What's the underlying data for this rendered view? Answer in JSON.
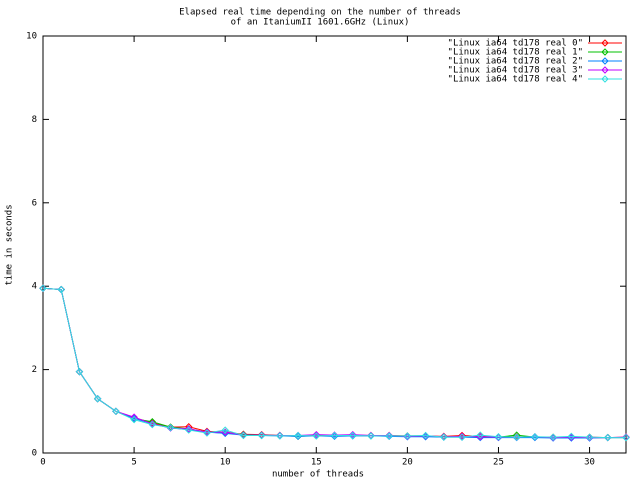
{
  "chart_data": {
    "type": "line",
    "title": "Elapsed real time depending on the number of threads",
    "subtitle": "of an ItaniumII 1601.6GHz (Linux)",
    "x_label": "number of threads",
    "y_label": "time in seconds",
    "x": [
      0,
      1,
      2,
      3,
      4,
      5,
      6,
      7,
      8,
      9,
      10,
      11,
      12,
      13,
      14,
      15,
      16,
      17,
      18,
      19,
      20,
      21,
      22,
      23,
      24,
      25,
      26,
      27,
      28,
      29,
      30,
      31,
      32
    ],
    "xlim": [
      0,
      32
    ],
    "xticks": [
      0,
      5,
      10,
      15,
      20,
      25,
      30
    ],
    "ylim": [
      0,
      10
    ],
    "yticks": [
      0,
      2,
      4,
      6,
      8,
      10
    ],
    "grid": false,
    "legend": "top-right",
    "series": [
      {
        "name": "\"Linux ia64 td178 real 0\"",
        "color": "#ff0000",
        "values": [
          3.95,
          3.92,
          1.95,
          1.3,
          1.0,
          0.85,
          0.72,
          0.62,
          0.63,
          0.52,
          0.5,
          0.45,
          0.44,
          0.42,
          0.41,
          0.43,
          0.42,
          0.43,
          0.42,
          0.42,
          0.41,
          0.41,
          0.4,
          0.42,
          0.4,
          0.38,
          0.39,
          0.38,
          0.38,
          0.37,
          0.38,
          0.37,
          0.38
        ]
      },
      {
        "name": "\"Linux ia64 td178 real 1\"",
        "color": "#00c000",
        "values": [
          3.95,
          3.92,
          1.95,
          1.3,
          1.0,
          0.82,
          0.75,
          0.62,
          0.58,
          0.5,
          0.48,
          0.44,
          0.43,
          0.42,
          0.4,
          0.42,
          0.41,
          0.42,
          0.41,
          0.41,
          0.4,
          0.4,
          0.39,
          0.39,
          0.38,
          0.38,
          0.43,
          0.38,
          0.37,
          0.38,
          0.37,
          0.37,
          0.37
        ]
      },
      {
        "name": "\"Linux ia64 td178 real 2\"",
        "color": "#0080ff",
        "values": [
          3.95,
          3.92,
          1.95,
          1.3,
          1.0,
          0.83,
          0.7,
          0.6,
          0.56,
          0.5,
          0.47,
          0.43,
          0.42,
          0.41,
          0.4,
          0.41,
          0.4,
          0.41,
          0.41,
          0.4,
          0.39,
          0.39,
          0.38,
          0.38,
          0.37,
          0.37,
          0.37,
          0.37,
          0.36,
          0.36,
          0.36,
          0.37,
          0.37
        ]
      },
      {
        "name": "\"Linux ia64 td178 real 3\"",
        "color": "#c000ff",
        "values": [
          3.95,
          3.92,
          1.95,
          1.3,
          1.0,
          0.86,
          0.7,
          0.6,
          0.58,
          0.5,
          0.5,
          0.43,
          0.43,
          0.42,
          0.42,
          0.44,
          0.43,
          0.44,
          0.42,
          0.42,
          0.4,
          0.41,
          0.39,
          0.4,
          0.39,
          0.38,
          0.38,
          0.39,
          0.37,
          0.38,
          0.37,
          0.37,
          0.38
        ]
      },
      {
        "name": "\"Linux ia64 td178 real 4\"",
        "color": "#30e0e0",
        "values": [
          3.95,
          3.92,
          1.95,
          1.3,
          1.0,
          0.8,
          0.68,
          0.61,
          0.55,
          0.48,
          0.55,
          0.42,
          0.42,
          0.41,
          0.42,
          0.41,
          0.42,
          0.42,
          0.41,
          0.41,
          0.41,
          0.42,
          0.38,
          0.38,
          0.43,
          0.39,
          0.38,
          0.39,
          0.38,
          0.4,
          0.38,
          0.37,
          0.37
        ]
      }
    ]
  }
}
